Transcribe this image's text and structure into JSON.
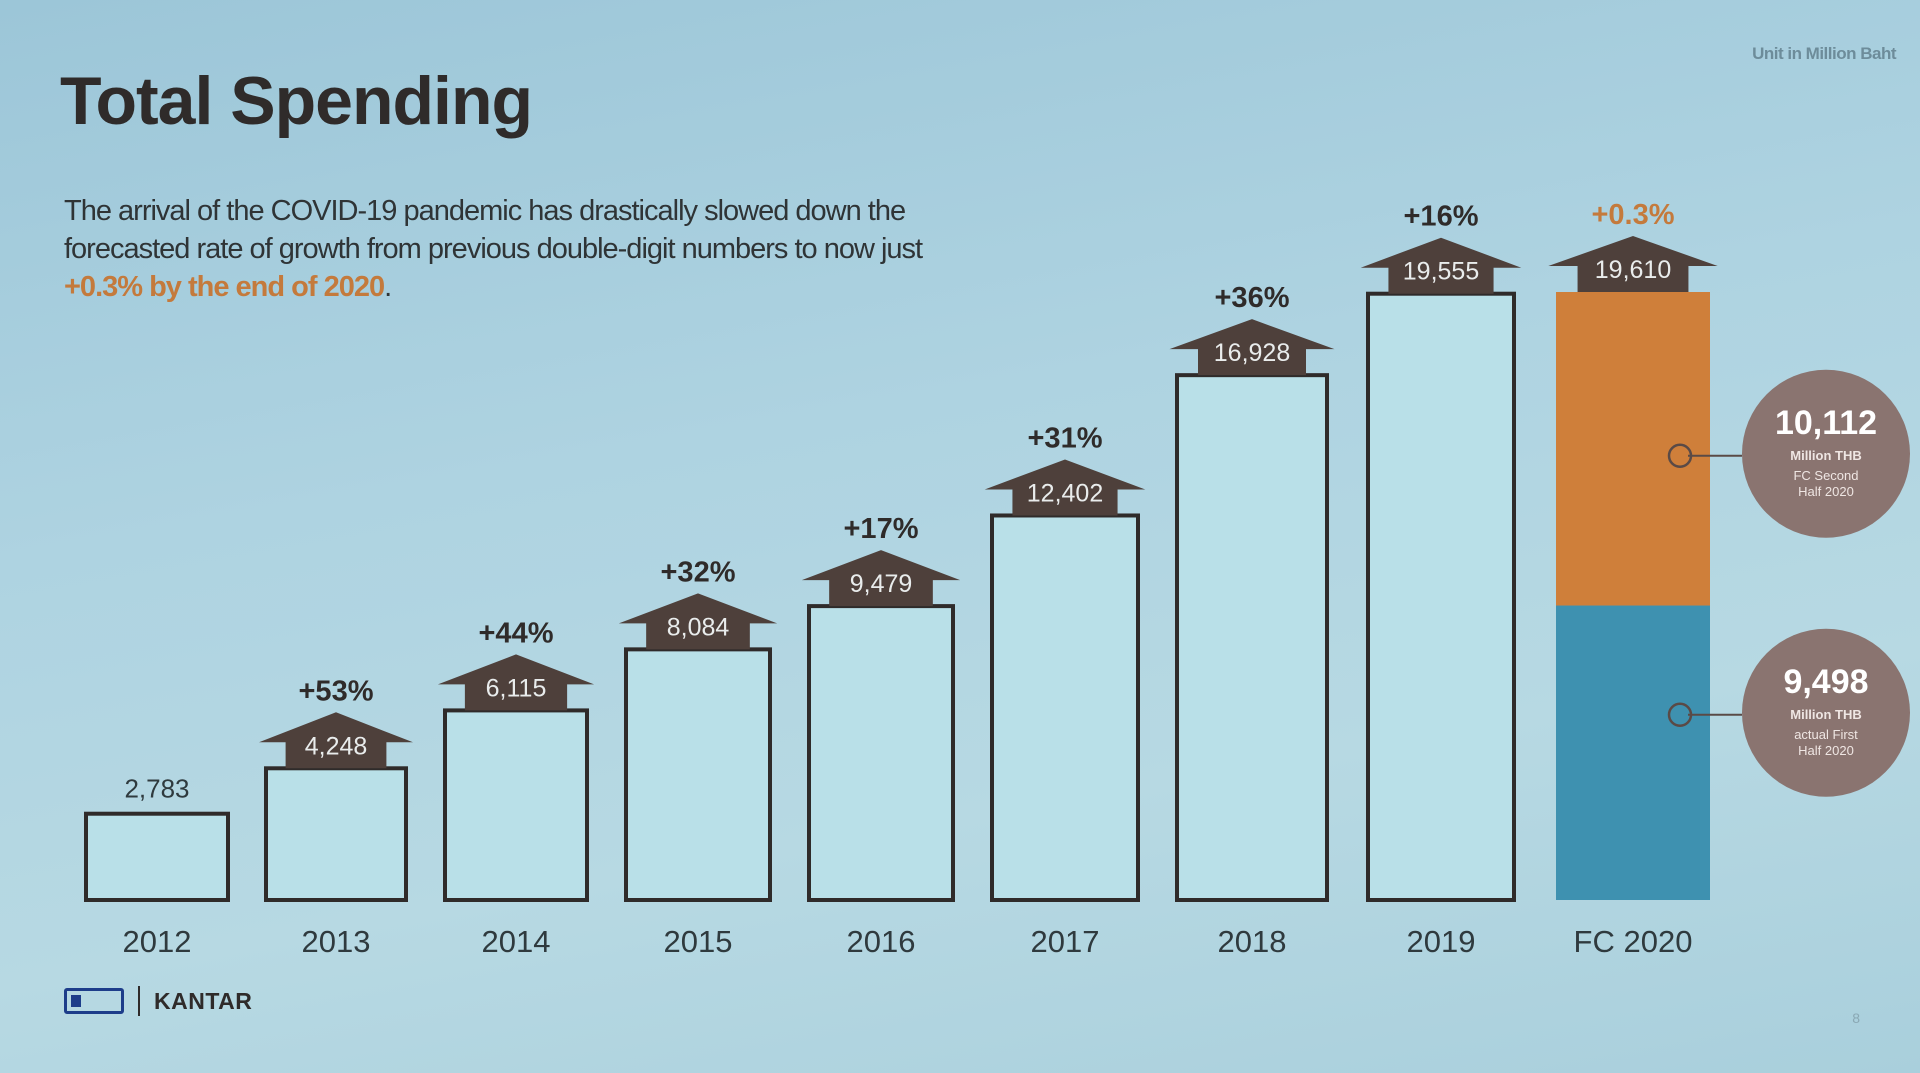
{
  "slide": {
    "title": "Total Spending",
    "unit_note": "Unit in Million Baht",
    "description_prefix": "The arrival of the COVID-19 pandemic has drastically slowed down the forecasted rate of growth from previous double-digit numbers to now just ",
    "description_highlight": "+0.3% by the end of 2020",
    "description_suffix": ".",
    "footer_brand": "KANTAR",
    "page_number": "8"
  },
  "colors": {
    "bar_fill": "#b9e0e8",
    "bar_stroke": "#2f2b2a",
    "arrow_fill": "#4e403b",
    "arrow_text": "#e9ecec",
    "growth_text": "#2f2b2a",
    "highlight_growth": "#c47a3c",
    "first_half": "#3e91b0",
    "second_half": "#cf7f3a",
    "bubble": "#8a7470"
  },
  "chart_data": {
    "type": "bar",
    "title": "Total Spending",
    "ylabel": "Unit in Million Baht",
    "ylim": [
      0,
      19610
    ],
    "categories": [
      "2012",
      "2013",
      "2014",
      "2015",
      "2016",
      "2017",
      "2018",
      "2019",
      "FC 2020"
    ],
    "values": [
      2783,
      4248,
      6115,
      8084,
      9479,
      12402,
      16928,
      19555,
      19610
    ],
    "value_labels": [
      "2,783",
      "4,248",
      "6,115",
      "8,084",
      "9,479",
      "12,402",
      "16,928",
      "19,555",
      "19,610"
    ],
    "growth_labels": [
      "",
      "+53%",
      "+44%",
      "+32%",
      "+17%",
      "+31%",
      "+36%",
      "+16%",
      "+0.3%"
    ],
    "stacked_2020": [
      {
        "name": "actual First Half 2020",
        "value": 9498,
        "value_label": "9,498",
        "unit": "Million THB",
        "caption_1": "actual First",
        "caption_2": "Half 2020"
      },
      {
        "name": "FC Second Half 2020",
        "value": 10112,
        "value_label": "10,112",
        "unit": "Million THB",
        "caption_1": "FC Second",
        "caption_2": "Half 2020"
      }
    ]
  }
}
